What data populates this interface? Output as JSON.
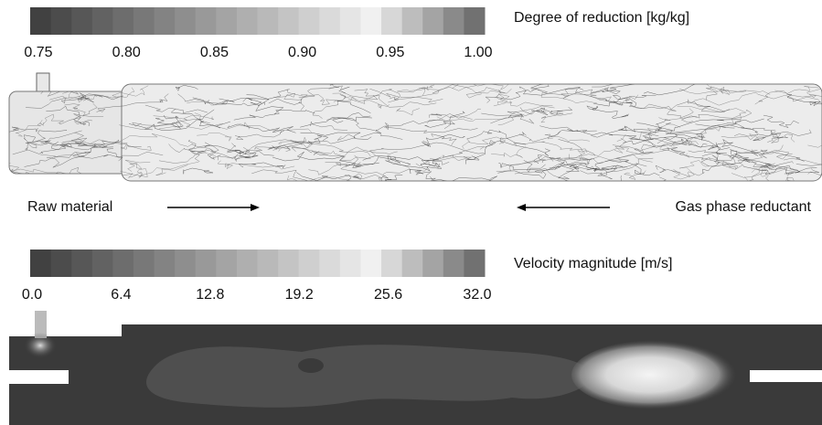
{
  "degree_colorbar": {
    "label": "Degree of reduction [kg/kg]",
    "ticks": [
      "0.75",
      "0.80",
      "0.85",
      "0.90",
      "0.95",
      "1.00"
    ]
  },
  "flow": {
    "left_label": "Raw material",
    "right_label": "Gas phase reductant"
  },
  "velocity_colorbar": {
    "label": "Velocity magnitude [m/s]",
    "ticks": [
      "0.0",
      "6.4",
      "12.8",
      "19.2",
      "25.6",
      "32.0"
    ]
  }
}
